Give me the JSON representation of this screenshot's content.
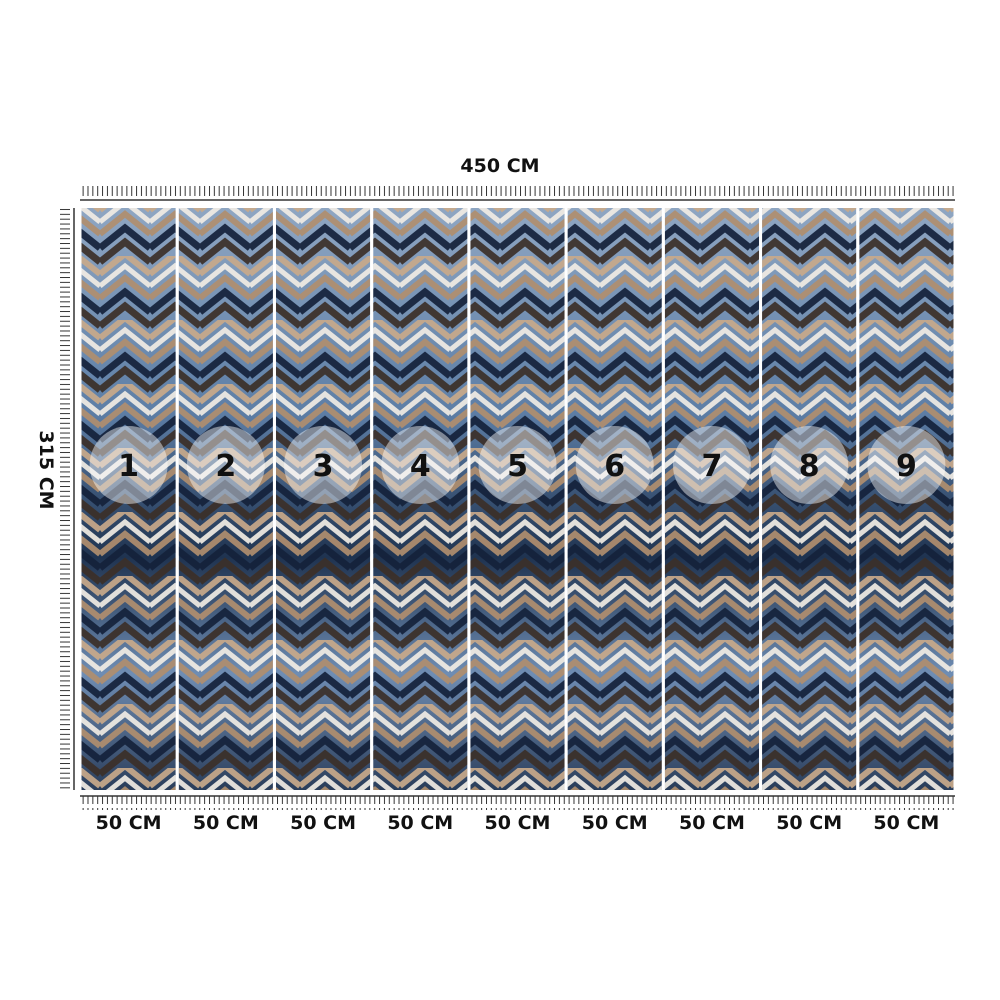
{
  "dimensions": {
    "width": "450 CM",
    "height": "315 CM"
  },
  "panels": [
    {
      "number": "1",
      "width": "50 CM"
    },
    {
      "number": "2",
      "width": "50 CM"
    },
    {
      "number": "3",
      "width": "50 CM"
    },
    {
      "number": "4",
      "width": "50 CM"
    },
    {
      "number": "5",
      "width": "50 CM"
    },
    {
      "number": "6",
      "width": "50 CM"
    },
    {
      "number": "7",
      "width": "50 CM"
    },
    {
      "number": "8",
      "width": "50 CM"
    },
    {
      "number": "9",
      "width": "50 CM"
    }
  ]
}
